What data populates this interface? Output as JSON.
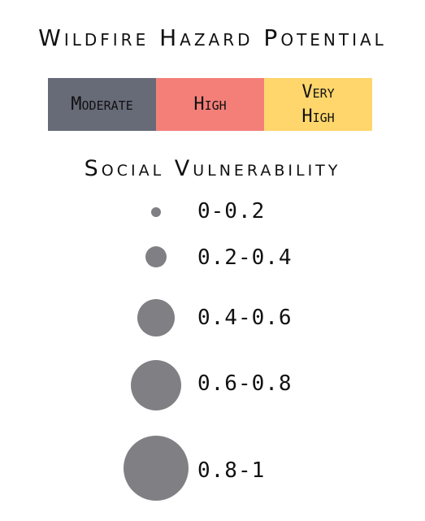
{
  "legend": {
    "hazard": {
      "title": "Wildfire Hazard Potential",
      "classes": [
        {
          "label_line1": "Moderate",
          "label_line2": "",
          "color": "#676b78"
        },
        {
          "label_line1": "High",
          "label_line2": "",
          "color": "#f47f79"
        },
        {
          "label_line1": "Very",
          "label_line2": "High",
          "color": "#fed66c"
        }
      ]
    },
    "vulnerability": {
      "title": "Social Vulnerability",
      "symbol_color": "#808084",
      "classes": [
        {
          "label": "0-0.2"
        },
        {
          "label": "0.2-0.4"
        },
        {
          "label": "0.4-0.6"
        },
        {
          "label": "0.6-0.8"
        },
        {
          "label": "0.8-1"
        }
      ]
    }
  }
}
